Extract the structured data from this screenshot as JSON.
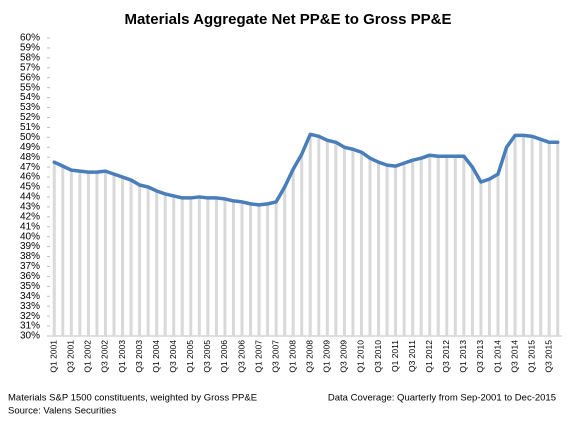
{
  "chart_data": {
    "type": "line",
    "title": "Materials  Aggregate  Net  PP&E  to  Gross  PP&E",
    "notes": [
      "Materials S&P 1500 constituents, weighted by Gross PP&E",
      "Source: Valens Securities"
    ],
    "coverage": "Data Coverage: Quarterly from Sep-2001 to Dec-2015",
    "categories": [
      "Q1 2001",
      null,
      "Q3 2001",
      null,
      "Q1 2002",
      null,
      "Q3 2002",
      null,
      "Q1 2003",
      null,
      "Q3 2003",
      null,
      "Q1 2004",
      null,
      "Q3 2004",
      null,
      "Q1 2005",
      null,
      "Q3 2005",
      null,
      "Q1 2006",
      null,
      "Q3 2006",
      null,
      "Q1 2007",
      null,
      "Q3 2007",
      null,
      "Q1 2008",
      null,
      "Q3 2008",
      null,
      "Q1 2009",
      null,
      "Q3 2009",
      null,
      "Q1 2010",
      null,
      "Q3 2010",
      null,
      "Q1 2011",
      null,
      "Q3 2011",
      null,
      "Q1 2012",
      null,
      "Q3 2012",
      null,
      "Q1 2013",
      null,
      "Q3 2013",
      null,
      "Q1 2014",
      null,
      "Q3 2014",
      null,
      "Q1 2015",
      null,
      "Q3 2015",
      null
    ],
    "values": [
      47.5,
      47.1,
      46.7,
      46.6,
      46.5,
      46.5,
      46.6,
      46.3,
      46.0,
      45.7,
      45.2,
      45.0,
      44.6,
      44.3,
      44.1,
      43.9,
      43.9,
      44.0,
      43.9,
      43.9,
      43.8,
      43.6,
      43.5,
      43.3,
      43.2,
      43.3,
      43.5,
      45.0,
      46.8,
      48.3,
      50.3,
      50.1,
      49.7,
      49.5,
      49.0,
      48.8,
      48.5,
      47.9,
      47.5,
      47.2,
      47.1,
      47.4,
      47.7,
      47.9,
      48.2,
      48.1,
      48.1,
      48.1,
      48.1,
      47.0,
      45.5,
      45.8,
      46.3,
      49.0,
      50.2,
      50.2,
      50.1,
      49.8,
      49.5,
      49.5
    ],
    "color": "#4a7ebb",
    "drop_color": "#d9d9d9",
    "ylim": [
      30,
      60
    ],
    "yticks": [
      {
        "value": 30,
        "label": "30%"
      },
      {
        "value": 31,
        "label": "31%"
      },
      {
        "value": 32,
        "label": "32%"
      },
      {
        "value": 33,
        "label": "33%"
      },
      {
        "value": 34,
        "label": "34%"
      },
      {
        "value": 35,
        "label": "35%"
      },
      {
        "value": 36,
        "label": "36%"
      },
      {
        "value": 37,
        "label": "37%"
      },
      {
        "value": 38,
        "label": "38%"
      },
      {
        "value": 39,
        "label": "39%"
      },
      {
        "value": 40,
        "label": "40%"
      },
      {
        "value": 41,
        "label": "41%"
      },
      {
        "value": 42,
        "label": "42%"
      },
      {
        "value": 43,
        "label": "43%"
      },
      {
        "value": 44,
        "label": "44%"
      },
      {
        "value": 45,
        "label": "45%"
      },
      {
        "value": 46,
        "label": "46%"
      },
      {
        "value": 47,
        "label": "47%"
      },
      {
        "value": 48,
        "label": "48%"
      },
      {
        "value": 49,
        "label": "49%"
      },
      {
        "value": 50,
        "label": "50%"
      },
      {
        "value": 51,
        "label": "51%"
      },
      {
        "value": 52,
        "label": "52%"
      },
      {
        "value": 53,
        "label": "53%"
      },
      {
        "value": 54,
        "label": "54%"
      },
      {
        "value": 55,
        "label": "55%"
      },
      {
        "value": 56,
        "label": "56%"
      },
      {
        "value": 57,
        "label": "57%"
      },
      {
        "value": 58,
        "label": "58%"
      },
      {
        "value": 59,
        "label": "59%"
      },
      {
        "value": 60,
        "label": "60%"
      }
    ],
    "grid": false
  }
}
